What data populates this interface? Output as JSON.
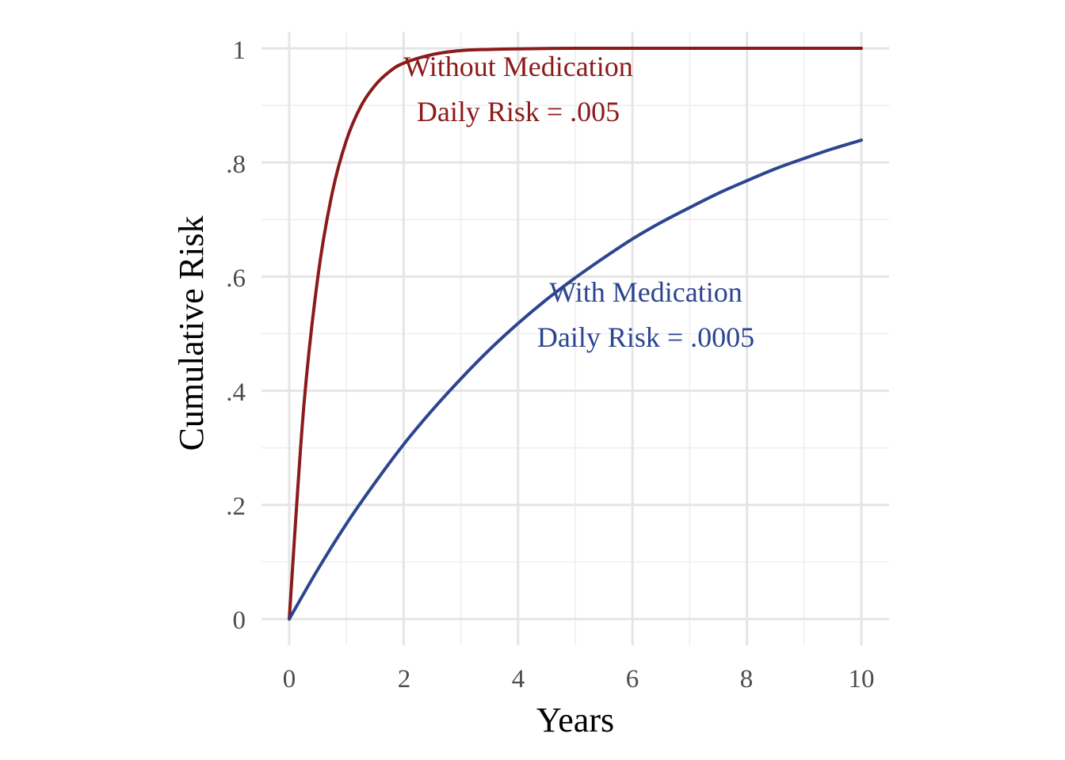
{
  "chart_data": {
    "type": "line",
    "xlabel": "Years",
    "ylabel": "Cumulative Risk",
    "xlim": [
      0,
      10
    ],
    "ylim": [
      0,
      1
    ],
    "x_ticks": [
      0,
      2,
      4,
      6,
      8,
      10
    ],
    "x_tick_labels": [
      "0",
      "2",
      "4",
      "6",
      "8",
      "10"
    ],
    "y_ticks": [
      0,
      0.2,
      0.4,
      0.6,
      0.8,
      1
    ],
    "y_tick_labels": [
      "0",
      ".2",
      ".4",
      ".6",
      ".8",
      "1"
    ],
    "grid": true,
    "series": [
      {
        "color": "#8b1a1a",
        "daily_risk": 0.005,
        "x": [
          0,
          0.25,
          0.5,
          0.75,
          1,
          1.25,
          1.5,
          1.75,
          2,
          2.5,
          3,
          3.5,
          4,
          5,
          6,
          7,
          8,
          9,
          10
        ],
        "values": [
          0,
          0.367,
          0.599,
          0.746,
          0.839,
          0.898,
          0.935,
          0.959,
          0.974,
          0.989,
          0.996,
          0.998,
          0.999,
          1.0,
          1.0,
          1.0,
          1.0,
          1.0,
          1.0
        ]
      },
      {
        "color": "#2b4590",
        "daily_risk": 0.0005,
        "x": [
          0,
          0.5,
          1,
          1.5,
          2,
          2.5,
          3,
          3.5,
          4,
          4.5,
          5,
          5.5,
          6,
          6.5,
          7,
          7.5,
          8,
          8.5,
          9,
          9.5,
          10
        ],
        "values": [
          0,
          0.087,
          0.167,
          0.239,
          0.306,
          0.366,
          0.421,
          0.472,
          0.518,
          0.56,
          0.598,
          0.633,
          0.666,
          0.695,
          0.721,
          0.746,
          0.768,
          0.789,
          0.807,
          0.824,
          0.839
        ]
      }
    ],
    "annotations": [
      {
        "lines": [
          "Without Medication",
          "Daily Risk = .005"
        ],
        "color": "#8b1a1a"
      },
      {
        "lines": [
          "With Medication",
          "Daily Risk = .0005"
        ],
        "color": "#2b4590"
      }
    ]
  }
}
